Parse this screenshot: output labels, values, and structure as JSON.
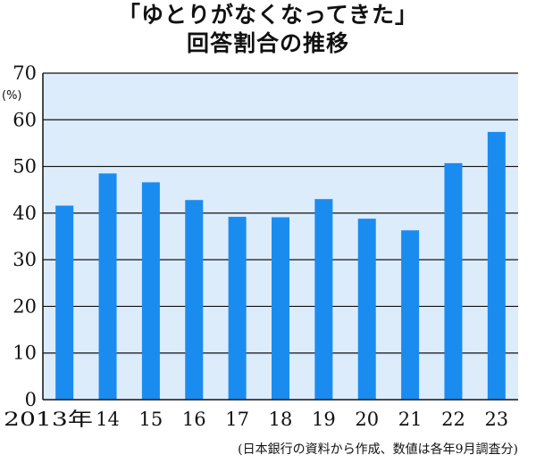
{
  "chart_data": {
    "type": "bar",
    "title": "「ゆとりがなくなってきた」",
    "subtitle": "回答割合の推移",
    "unit_label": "(%)",
    "categories": [
      "2013年",
      "14",
      "15",
      "16",
      "17",
      "18",
      "19",
      "20",
      "21",
      "22",
      "23"
    ],
    "values": [
      41.6,
      48.5,
      46.6,
      42.8,
      39.2,
      39.1,
      43.0,
      38.8,
      36.3,
      50.7,
      57.4
    ],
    "ylim": [
      0,
      70
    ],
    "yticks": [
      0,
      10,
      20,
      30,
      40,
      50,
      60,
      70
    ],
    "grid": true,
    "bar_color": "#1a8cf0",
    "plot_background": "#dcecfb",
    "source_note": "(日本銀行の資料から作成、数値は各年9月調査分)"
  }
}
